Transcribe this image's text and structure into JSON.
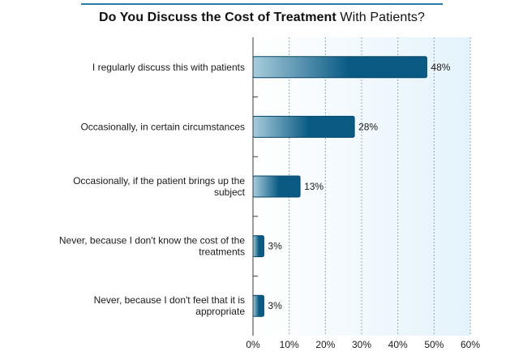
{
  "chart_data": {
    "type": "bar",
    "orientation": "horizontal",
    "title": "Do You Discuss the Cost of Treatment With Patients?",
    "title_bold": "Do You Discuss the Cost of Treatment",
    "title_regular": "With Patients?",
    "categories": [
      "I regularly discuss this with patients",
      "Occasionally, in certain circumstances",
      "Occasionally, if the patient brings up the subject",
      "Never, because I don't know the cost of the treatments",
      "Never, because I don't feel that it is appropriate"
    ],
    "category_lines": [
      [
        "I regularly discuss this with patients"
      ],
      [
        "Occasionally, in certain circumstances"
      ],
      [
        "Occasionally, if the patient brings up the",
        "subject"
      ],
      [
        "Never, because I don't know the cost of the",
        "treatments"
      ],
      [
        "Never, because I don't feel that it is",
        "appropriate"
      ]
    ],
    "values": [
      48,
      28,
      13,
      3,
      3
    ],
    "value_labels": [
      "48%",
      "28%",
      "13%",
      "3%",
      "3%"
    ],
    "xlim": [
      0,
      60
    ],
    "xticks": [
      0,
      10,
      20,
      30,
      40,
      50,
      60
    ],
    "xtick_labels": [
      "0%",
      "10%",
      "20%",
      "30%",
      "40%",
      "50%",
      "60%"
    ],
    "grid": "vertical-dotted",
    "bar_color_dark": "#0a5a84",
    "bar_color_light": "#a8cddc",
    "bar_border": "#06466a",
    "plot_bg_left": "#ffffff",
    "plot_bg_right": "#e4f3fb",
    "grid_color": "#9aa6ad",
    "title_rule_color": "#2a7da8"
  }
}
